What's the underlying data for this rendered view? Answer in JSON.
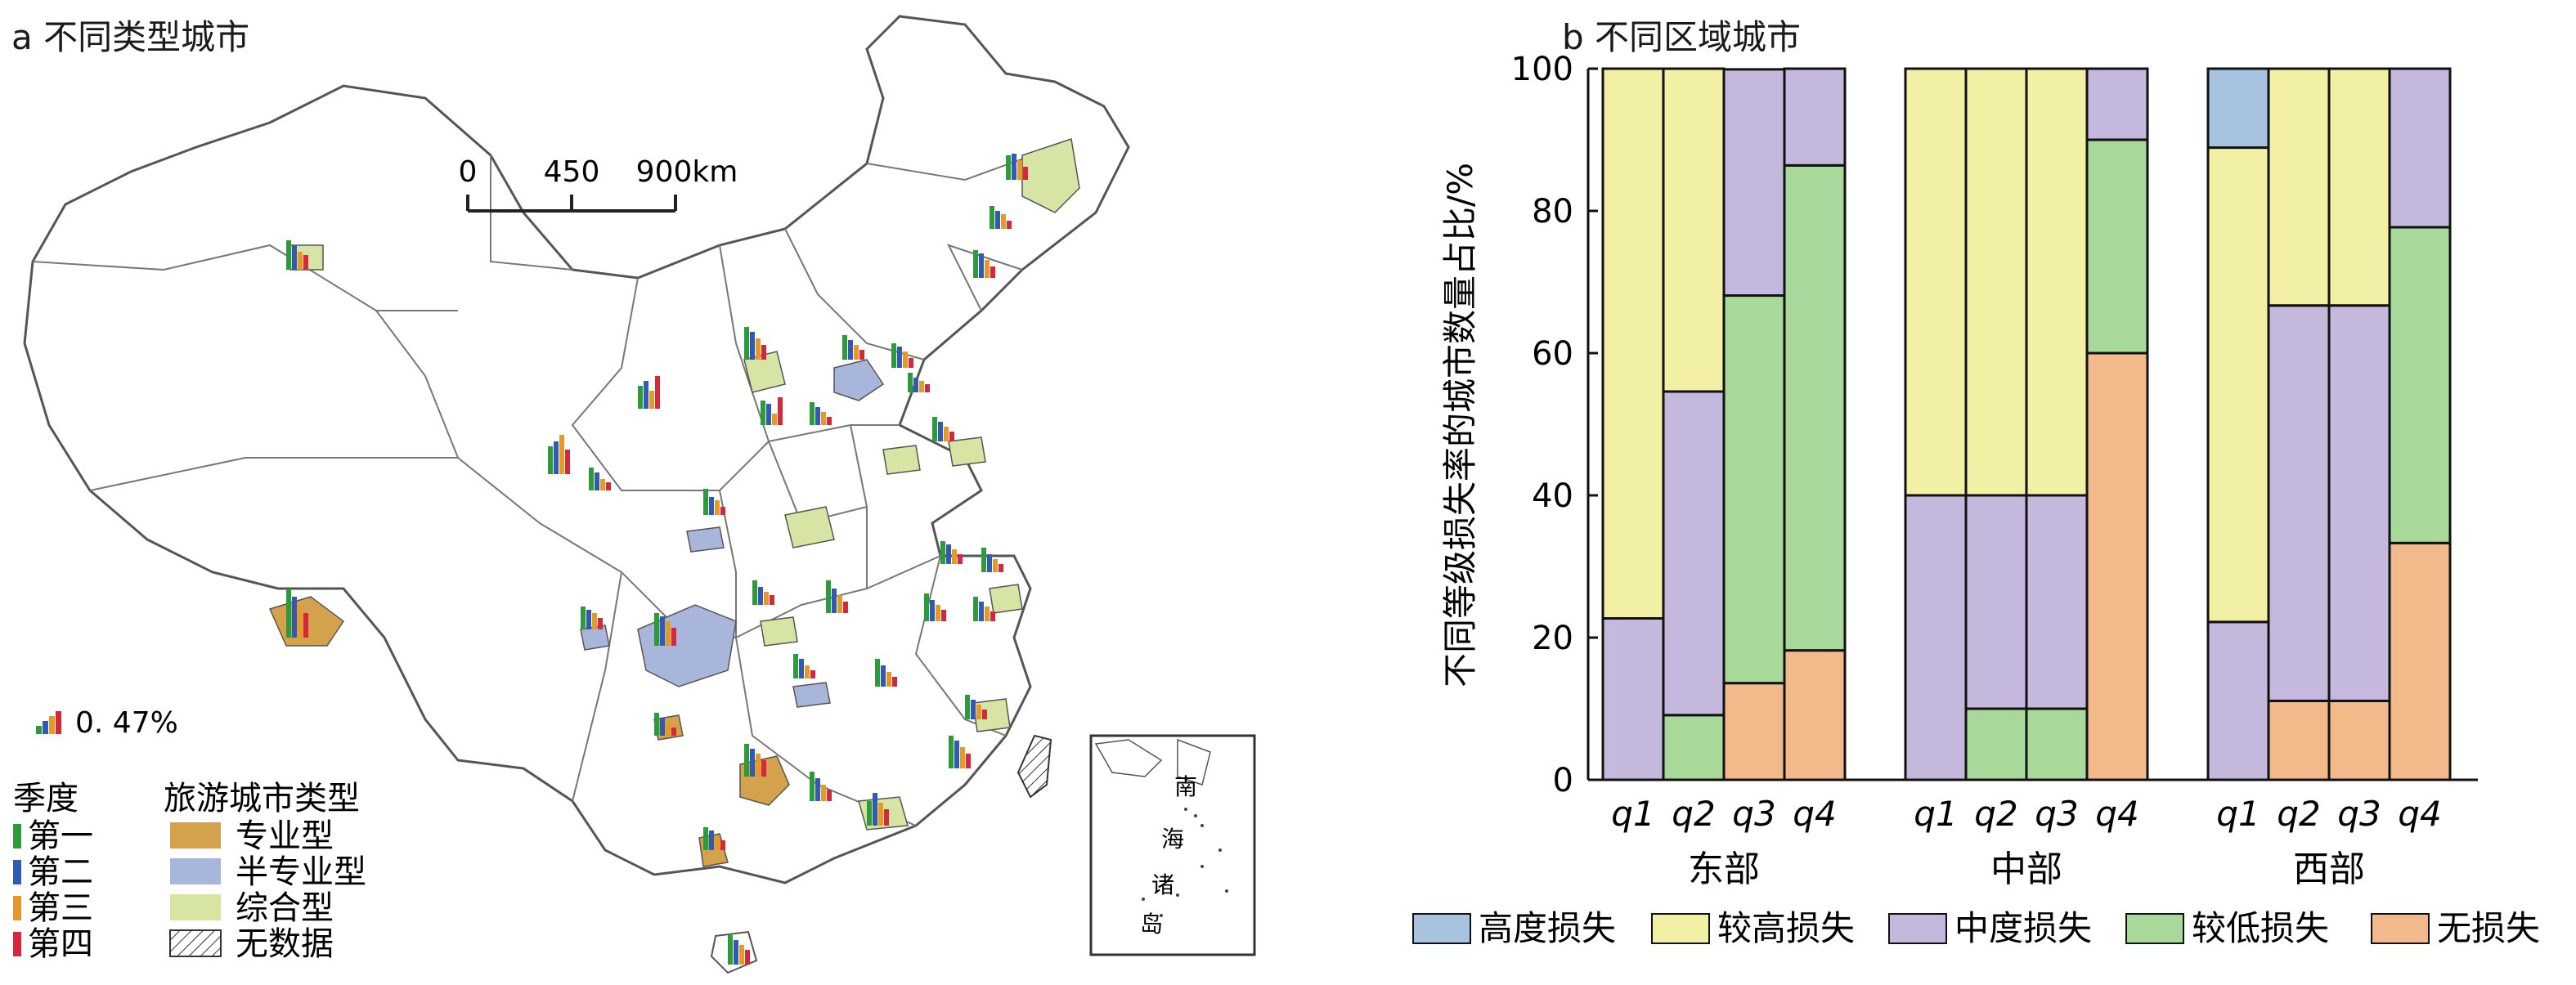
{
  "panel_a": {
    "title": "a 不同类型城市",
    "scale_labels": [
      "0",
      "450",
      "900km"
    ],
    "bar_scale_label": "0. 47%",
    "season_legend": {
      "heading": "季度",
      "items": [
        {
          "label": "第一",
          "color": "#2f9a3b"
        },
        {
          "label": "第二",
          "color": "#2f5bb0"
        },
        {
          "label": "第三",
          "color": "#e39a2a"
        },
        {
          "label": "第四",
          "color": "#d6283a"
        }
      ]
    },
    "type_legend": {
      "heading": "旅游城市类型",
      "items": [
        {
          "label": "专业型",
          "color": "#d4a24c"
        },
        {
          "label": "半专业型",
          "color": "#a9b6dc"
        },
        {
          "label": "综合型",
          "color": "#d6e4a4"
        },
        {
          "label": "无数据",
          "color": "none"
        }
      ]
    },
    "inset_labels": [
      "南",
      "海",
      "诸",
      "岛"
    ]
  },
  "chart_data": {
    "type": "bar",
    "stacked": true,
    "title": "b 不同区域城市",
    "ylabel": "不同等级损失率的城市数量占比/%",
    "xlabel": "",
    "ylim": [
      0,
      100
    ],
    "yticks": [
      0,
      20,
      40,
      60,
      80,
      100
    ],
    "groups": [
      {
        "name": "东部",
        "categories": [
          "q1",
          "q2",
          "q3",
          "q4"
        ]
      },
      {
        "name": "中部",
        "categories": [
          "q1",
          "q2",
          "q3",
          "q4"
        ]
      },
      {
        "name": "西部",
        "categories": [
          "q1",
          "q2",
          "q3",
          "q4"
        ]
      }
    ],
    "series": [
      {
        "name": "无损失",
        "color": "#f2b98a",
        "values": [
          [
            0,
            0,
            13.6,
            18.2
          ],
          [
            0,
            0,
            0,
            60
          ],
          [
            0,
            11.1,
            11.1,
            33.3
          ]
        ]
      },
      {
        "name": "较低损失",
        "color": "#a8d89a",
        "values": [
          [
            0,
            9.1,
            54.5,
            68.2
          ],
          [
            0,
            10,
            10,
            30
          ],
          [
            0,
            0,
            0,
            44.4
          ]
        ]
      },
      {
        "name": "中度损失",
        "color": "#c5b8dd",
        "values": [
          [
            22.7,
            45.5,
            31.8,
            13.6
          ],
          [
            40,
            30,
            30,
            10
          ],
          [
            22.2,
            55.6,
            55.6,
            22.3
          ]
        ]
      },
      {
        "name": "较高损失",
        "color": "#f1f0a4",
        "values": [
          [
            77.3,
            45.4,
            0,
            0
          ],
          [
            60,
            60,
            60,
            0
          ],
          [
            66.7,
            33.3,
            33.3,
            0
          ]
        ]
      },
      {
        "name": "高度损失",
        "color": "#a7c3e0",
        "values": [
          [
            0,
            0,
            0,
            0
          ],
          [
            0,
            0,
            0,
            0
          ],
          [
            11.1,
            0,
            0,
            0
          ]
        ]
      }
    ],
    "legend_order": [
      "高度损失",
      "较高损失",
      "中度损失",
      "较低损失",
      "无损失"
    ],
    "legend_position": "bottom"
  }
}
